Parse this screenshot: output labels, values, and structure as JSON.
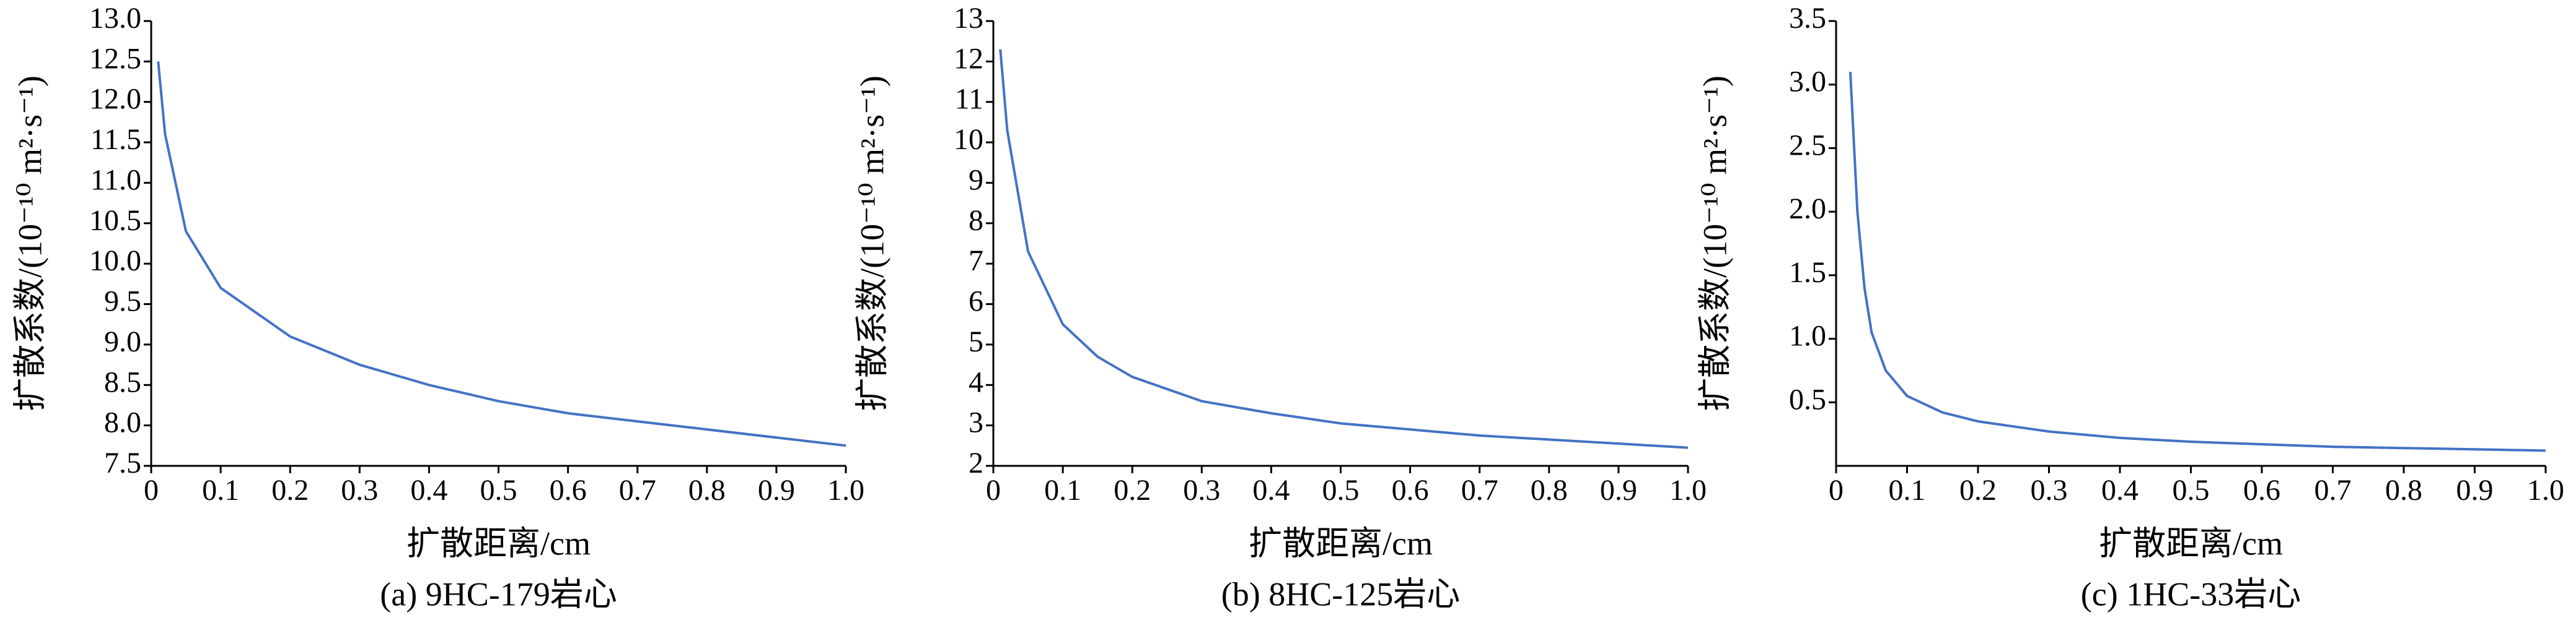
{
  "chart_data": [
    {
      "type": "line",
      "caption": "(a) 9HC-179岩心",
      "xlabel": "扩散距离/cm",
      "ylabel": "扩散系数/(10⁻¹⁰ m²·s⁻¹)",
      "x": [
        0.01,
        0.02,
        0.05,
        0.1,
        0.2,
        0.3,
        0.4,
        0.5,
        0.6,
        0.7,
        0.8,
        0.9,
        1.0
      ],
      "series": [
        {
          "color": "#4472c4",
          "values": [
            12.5,
            11.6,
            10.4,
            9.7,
            9.1,
            8.75,
            8.5,
            8.3,
            8.15,
            8.05,
            7.95,
            7.85,
            7.75
          ]
        }
      ],
      "xlim": [
        0,
        1
      ],
      "xticks": [
        0,
        0.1,
        0.2,
        0.3,
        0.4,
        0.5,
        0.6,
        0.7,
        0.8,
        0.9,
        {
          "value": 1,
          "label": "1.0"
        }
      ],
      "ylim": [
        7.5,
        13
      ],
      "yticks": [
        7.5,
        {
          "value": 8,
          "label": "8.0"
        },
        8.5,
        {
          "value": 9,
          "label": "9.0"
        },
        9.5,
        {
          "value": 10,
          "label": "10.0"
        },
        10.5,
        {
          "value": 11,
          "label": "11.0"
        },
        11.5,
        {
          "value": 12,
          "label": "12.0"
        },
        12.5,
        {
          "value": 13,
          "label": "13.0"
        }
      ]
    },
    {
      "type": "line",
      "caption": "(b) 8HC-125岩心",
      "xlabel": "扩散距离/cm",
      "ylabel": "扩散系数/(10⁻¹⁰ m²·s⁻¹)",
      "x": [
        0.01,
        0.02,
        0.05,
        0.1,
        0.15,
        0.2,
        0.3,
        0.4,
        0.5,
        0.6,
        0.7,
        0.8,
        0.9,
        1.0
      ],
      "series": [
        {
          "color": "#4472c4",
          "values": [
            12.3,
            10.3,
            7.3,
            5.5,
            4.7,
            4.2,
            3.6,
            3.3,
            3.05,
            2.9,
            2.75,
            2.65,
            2.55,
            2.45
          ]
        }
      ],
      "xlim": [
        0,
        1
      ],
      "xticks": [
        0,
        0.1,
        0.2,
        0.3,
        0.4,
        0.5,
        0.6,
        0.7,
        0.8,
        0.9,
        {
          "value": 1,
          "label": "1.0"
        }
      ],
      "ylim": [
        2,
        13
      ],
      "yticks": [
        2,
        3,
        4,
        5,
        6,
        7,
        8,
        9,
        10,
        11,
        12,
        13
      ]
    },
    {
      "type": "line",
      "caption": "(c) 1HC-33岩心",
      "xlabel": "扩散距离/cm",
      "ylabel": "扩散系数/(10⁻¹⁰ m²·s⁻¹)",
      "x": [
        0.02,
        0.03,
        0.04,
        0.05,
        0.07,
        0.1,
        0.15,
        0.2,
        0.3,
        0.4,
        0.5,
        0.6,
        0.7,
        0.8,
        0.9,
        1.0
      ],
      "series": [
        {
          "color": "#4472c4",
          "values": [
            3.1,
            2.0,
            1.4,
            1.05,
            0.75,
            0.55,
            0.42,
            0.35,
            0.27,
            0.22,
            0.19,
            0.17,
            0.15,
            0.14,
            0.13,
            0.12
          ]
        }
      ],
      "xlim": [
        0,
        1
      ],
      "xticks": [
        0,
        0.1,
        0.2,
        0.3,
        0.4,
        0.5,
        0.6,
        0.7,
        0.8,
        0.9,
        {
          "value": 1,
          "label": "1.0"
        }
      ],
      "ylim": [
        0,
        3.5
      ],
      "yticks": [
        0.5,
        {
          "value": 1,
          "label": "1.0"
        },
        1.5,
        {
          "value": 2,
          "label": "2.0"
        },
        2.5,
        {
          "value": 3,
          "label": "3.0"
        },
        3.5
      ]
    }
  ]
}
